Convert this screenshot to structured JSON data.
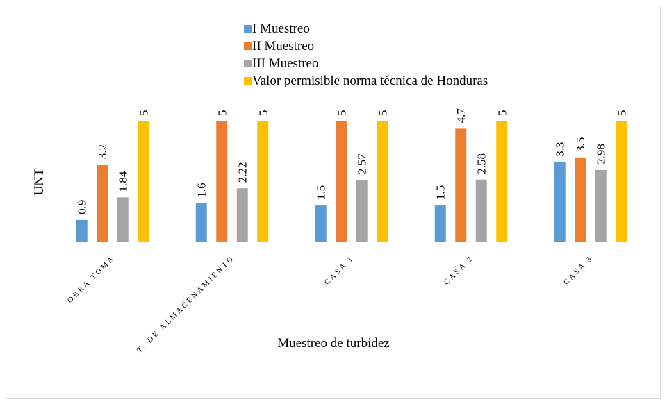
{
  "chart_data": {
    "type": "bar",
    "categories": [
      "OBRA TOMA",
      "T. DE ALMACENAMIENTO",
      "CASA 1",
      "CASA 2",
      "CASA 3"
    ],
    "series": [
      {
        "name": "I Muestreo",
        "color": "#5b9bd5",
        "values": [
          0.9,
          1.6,
          1.5,
          1.5,
          3.3
        ]
      },
      {
        "name": "II Muestreo",
        "color": "#ed7d31",
        "values": [
          3.2,
          5,
          5,
          4.7,
          3.5
        ]
      },
      {
        "name": "III Muestreo",
        "color": "#a5a5a5",
        "values": [
          1.84,
          2.22,
          2.57,
          2.58,
          2.98
        ]
      },
      {
        "name": "Valor permisible norma técnica de Honduras",
        "color": "#ffc000",
        "values": [
          5,
          5,
          5,
          5,
          5
        ]
      }
    ],
    "y_label": "UNT",
    "x_label": "Muestreo de turbidez",
    "ylim": [
      0,
      5
    ],
    "legend": "top"
  }
}
